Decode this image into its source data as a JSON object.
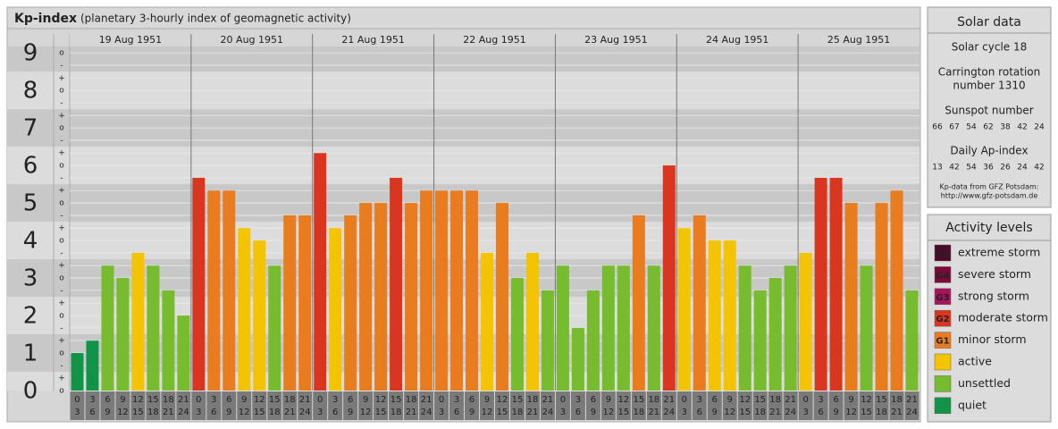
{
  "chart_data": {
    "type": "bar",
    "title": "Kp-index",
    "subtitle": "(planetary 3-hourly index of geomagnetic activity)",
    "days": [
      "19 Aug 1951",
      "20 Aug 1951",
      "21 Aug 1951",
      "22 Aug 1951",
      "23 Aug 1951",
      "24 Aug 1951",
      "25 Aug 1951"
    ],
    "hour_labels": [
      [
        "0",
        "3"
      ],
      [
        "3",
        "6"
      ],
      [
        "6",
        "9"
      ],
      [
        "9",
        "12"
      ],
      [
        "12",
        "15"
      ],
      [
        "15",
        "18"
      ],
      [
        "18",
        "21"
      ],
      [
        "21",
        "24"
      ]
    ],
    "values": [
      1.0,
      1.33,
      3.33,
      3.0,
      3.67,
      3.33,
      2.67,
      2.0,
      5.67,
      5.33,
      5.33,
      4.33,
      4.0,
      3.33,
      4.67,
      4.67,
      6.33,
      4.33,
      4.67,
      5.0,
      5.0,
      5.67,
      5.0,
      5.33,
      5.33,
      5.33,
      5.33,
      3.67,
      5.0,
      3.0,
      3.67,
      2.67,
      3.33,
      1.67,
      2.67,
      3.33,
      3.33,
      4.67,
      3.33,
      6.0,
      4.33,
      4.67,
      4.0,
      4.0,
      3.33,
      2.67,
      3.0,
      3.33,
      3.67,
      5.67,
      5.67,
      5.0,
      3.33,
      5.0,
      5.33,
      2.67
    ],
    "colors": [
      "#119447",
      "#119447",
      "#77bb2e",
      "#77bb2e",
      "#f5c400",
      "#77bb2e",
      "#77bb2e",
      "#77bb2e",
      "#d9351f",
      "#e87c1e",
      "#e87c1e",
      "#f5c400",
      "#f5c400",
      "#77bb2e",
      "#e87c1e",
      "#e87c1e",
      "#d9351f",
      "#f5c400",
      "#e87c1e",
      "#e87c1e",
      "#e87c1e",
      "#d9351f",
      "#e87c1e",
      "#e87c1e",
      "#e87c1e",
      "#e87c1e",
      "#e87c1e",
      "#f5c400",
      "#e87c1e",
      "#77bb2e",
      "#f5c400",
      "#77bb2e",
      "#77bb2e",
      "#77bb2e",
      "#77bb2e",
      "#77bb2e",
      "#77bb2e",
      "#e87c1e",
      "#77bb2e",
      "#d9351f",
      "#f5c400",
      "#e87c1e",
      "#f5c400",
      "#f5c400",
      "#77bb2e",
      "#77bb2e",
      "#77bb2e",
      "#77bb2e",
      "#f5c400",
      "#d9351f",
      "#d9351f",
      "#e87c1e",
      "#77bb2e",
      "#e87c1e",
      "#e87c1e",
      "#77bb2e"
    ],
    "ylim": [
      0,
      9.17
    ],
    "yticks": [
      0,
      1,
      2,
      3,
      4,
      5,
      6,
      7,
      8,
      9
    ],
    "minor_ticks": [
      {
        "value": 0,
        "label": "o"
      },
      {
        "value": 0.33,
        "label": "+"
      },
      {
        "value": 0.67,
        "label": "-"
      },
      {
        "value": 1,
        "label": "o"
      },
      {
        "value": 1.33,
        "label": "+"
      },
      {
        "value": 1.67,
        "label": "-"
      },
      {
        "value": 2,
        "label": "o"
      },
      {
        "value": 2.33,
        "label": "+"
      },
      {
        "value": 2.67,
        "label": "-"
      },
      {
        "value": 3,
        "label": "o"
      },
      {
        "value": 3.33,
        "label": "+"
      },
      {
        "value": 3.67,
        "label": "-"
      },
      {
        "value": 4,
        "label": "o"
      },
      {
        "value": 4.33,
        "label": "+"
      },
      {
        "value": 4.67,
        "label": "-"
      },
      {
        "value": 5,
        "label": "o"
      },
      {
        "value": 5.33,
        "label": "+"
      },
      {
        "value": 5.67,
        "label": "-"
      },
      {
        "value": 6,
        "label": "o"
      },
      {
        "value": 6.33,
        "label": "+"
      },
      {
        "value": 6.67,
        "label": "-"
      },
      {
        "value": 7,
        "label": "o"
      },
      {
        "value": 7.33,
        "label": "+"
      },
      {
        "value": 7.67,
        "label": "-"
      },
      {
        "value": 8,
        "label": "o"
      },
      {
        "value": 8.33,
        "label": "+"
      },
      {
        "value": 8.67,
        "label": "-"
      },
      {
        "value": 9,
        "label": "o"
      }
    ],
    "band_colors": [
      "#dcdcdc",
      "#c8c8c8"
    ],
    "solar": {
      "title": "Solar data",
      "cycle": "Solar cycle 18",
      "carrington": [
        "Carrington rotation",
        "number 1310"
      ],
      "sunspot_title": "Sunspot number",
      "sunspot": [
        66,
        67,
        54,
        62,
        38,
        42,
        24
      ],
      "ap_title": "Daily Ap-index",
      "ap": [
        13,
        42,
        54,
        36,
        26,
        24,
        42
      ],
      "source": [
        "Kp-data from GFZ Potsdam:",
        "http://www.gfz-potsdam.de"
      ]
    },
    "legend": {
      "title": "Activity levels",
      "items": [
        {
          "code": "G5",
          "name": "extreme storm",
          "color": "#4a0a2a"
        },
        {
          "code": "G4",
          "name": "severe storm",
          "color": "#7a0a3c"
        },
        {
          "code": "G3",
          "name": "strong storm",
          "color": "#a8145a"
        },
        {
          "code": "G2",
          "name": "moderate storm",
          "color": "#d9351f"
        },
        {
          "code": "G1",
          "name": "minor storm",
          "color": "#e87c1e"
        },
        {
          "name": "active",
          "color": "#f5c400"
        },
        {
          "name": "unsettled",
          "color": "#77bb2e"
        },
        {
          "name": "quiet",
          "color": "#119447"
        }
      ]
    }
  }
}
